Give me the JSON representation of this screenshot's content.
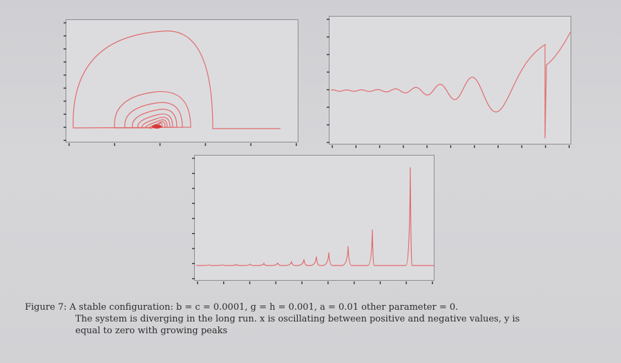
{
  "caption": {
    "label": "Figure 7:",
    "line1": "A stable configuration: b = c = 0.0001, g = h = 0.001, a = 0.01 other parameter = 0.",
    "line2": "The system is diverging in the long run. x is oscillating between positive and negative values, y is",
    "line3": "equal to zero with growing peaks"
  },
  "colors": {
    "curve": "#e26a6a",
    "axes": "#8c8c90",
    "ticks": "#3a3a3e"
  },
  "chart_data": [
    {
      "type": "line",
      "description_key": "phase-portrait",
      "shape": "inward spiral of nested arches converging to a point"
    },
    {
      "type": "line",
      "description_key": "x-time-series",
      "shape": "oscillation with growing amplitude then divergence"
    },
    {
      "type": "line",
      "description_key": "y-time-series",
      "shape": "near-zero baseline with growing peaks"
    }
  ]
}
